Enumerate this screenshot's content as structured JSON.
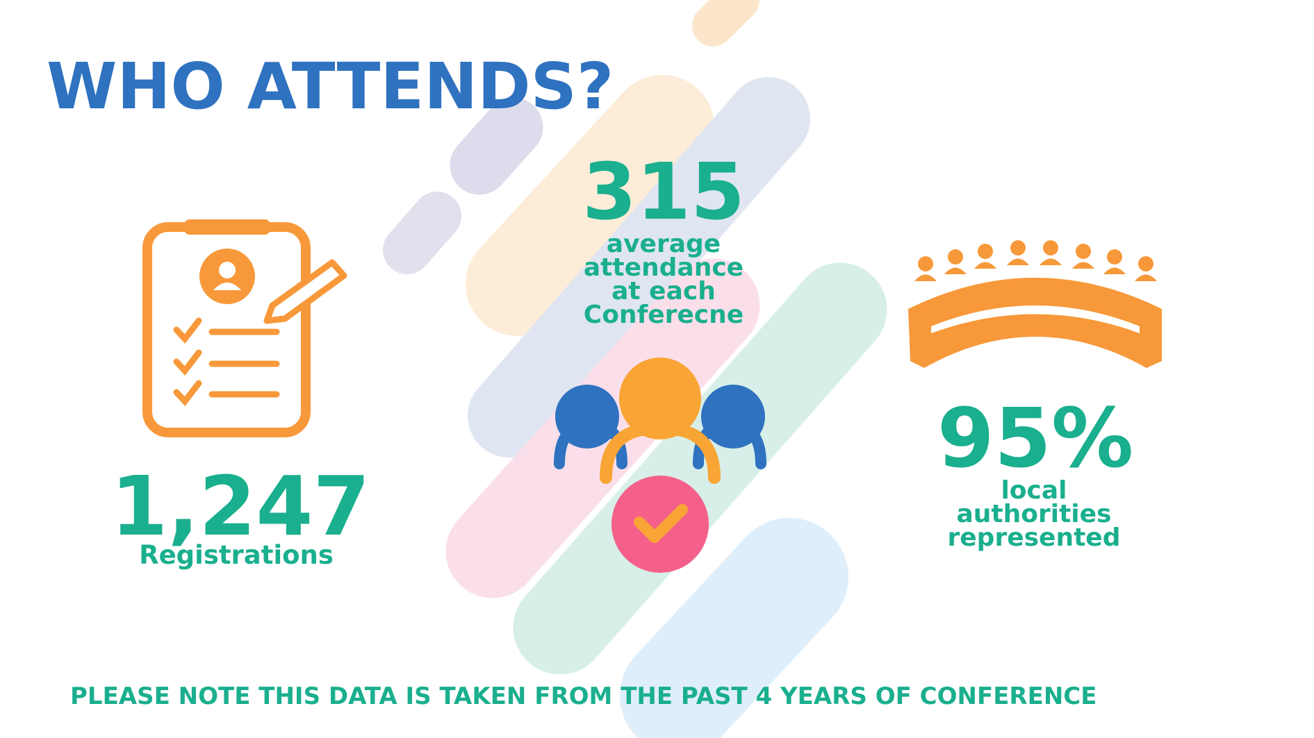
{
  "header": {
    "title": "WHO ATTENDS?"
  },
  "stats": [
    {
      "value": "1,247",
      "label_lines": [
        "Registrations"
      ]
    },
    {
      "value": "315",
      "label_lines": [
        "average",
        "attendance",
        "at each",
        "Conferecne"
      ]
    },
    {
      "value": "95%",
      "label_lines": [
        "local",
        "authorities",
        "represented"
      ]
    }
  ],
  "footer": {
    "note": "PLEASE NOTE THIS DATA IS TAKEN FROM THE PAST 4 YEARS OF CONFERENCE"
  }
}
